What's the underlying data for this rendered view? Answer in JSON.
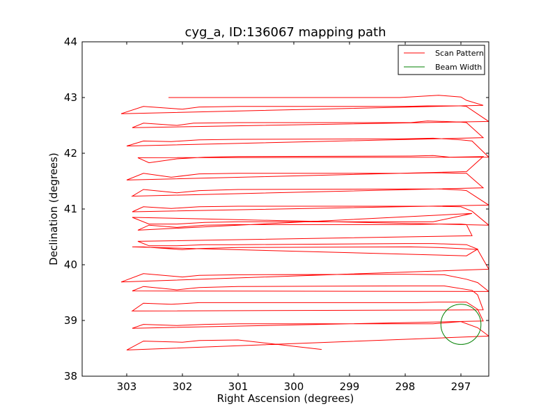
{
  "chart_data": {
    "type": "line",
    "title": "cyg_a, ID:136067 mapping path",
    "xlabel": "Right Ascension (degrees)",
    "ylabel": "Declination (degrees)",
    "xlim": [
      303.8,
      296.5
    ],
    "ylim": [
      38,
      44
    ],
    "x_reversed": true,
    "xticks": [
      303,
      302,
      301,
      300,
      299,
      298,
      297
    ],
    "yticks": [
      38,
      39,
      40,
      41,
      42,
      43,
      44
    ],
    "grid": false,
    "legend": {
      "placement": "top-right",
      "entries": [
        {
          "label": "Scan Pattern",
          "color": "#ff0000",
          "kind": "line"
        },
        {
          "label": "Beam Width",
          "color": "#008000",
          "kind": "line"
        }
      ]
    },
    "series": [
      {
        "name": "Scan Pattern",
        "color": "#ff0000",
        "x": [
          302.25,
          298.4,
          298.1,
          297.4,
          297.0,
          296.9,
          296.6,
          303.1,
          302.7,
          302.0,
          301.7,
          301.0,
          298.0,
          297.6,
          297.0,
          296.9,
          296.5,
          302.9,
          302.7,
          302.1,
          301.8,
          301.0,
          297.9,
          297.6,
          297.0,
          296.9,
          296.6,
          303.0,
          302.7,
          302.2,
          301.7,
          301.0,
          298.0,
          297.5,
          297.0,
          296.8,
          296.5,
          302.8,
          302.6,
          302.1,
          301.6,
          301.0,
          297.9,
          297.5,
          297.2,
          296.6,
          296.9,
          303.0,
          302.7,
          302.2,
          301.7,
          301.0,
          298.0,
          297.4,
          297.0,
          296.9,
          296.6,
          302.9,
          302.7,
          302.1,
          301.7,
          301.0,
          298.0,
          297.4,
          297.0,
          296.9,
          296.5,
          302.9,
          302.7,
          302.2,
          301.7,
          301.0,
          298.0,
          297.5,
          297.0,
          296.8,
          296.5,
          302.9,
          302.6,
          302.1,
          301.6,
          301.0,
          297.9,
          297.5,
          296.8,
          296.8,
          302.8,
          302.6,
          302.1,
          301.6,
          301.0,
          297.9,
          297.4,
          297.0,
          296.9,
          296.8,
          302.8,
          302.6,
          302.1,
          301.6,
          301.0,
          298.0,
          297.5,
          296.9,
          296.7,
          296.9,
          302.9,
          302.7,
          302.0,
          301.7,
          301.0,
          297.9,
          297.4,
          296.8,
          296.7,
          296.5,
          303.1,
          302.7,
          302.0,
          301.7,
          301.0,
          298.0,
          297.3,
          296.9,
          296.7,
          296.5,
          302.9,
          302.7,
          302.1,
          301.7,
          301.0,
          297.9,
          297.3,
          296.8,
          296.7,
          296.6,
          302.9,
          302.7,
          302.2,
          301.7,
          301.0,
          297.8,
          297.4,
          296.9,
          296.7,
          296.6,
          302.9,
          302.7,
          302.1,
          301.6,
          301.0,
          298.0,
          297.5,
          297.0,
          296.7,
          296.5,
          303.0,
          302.7,
          302.0,
          301.7,
          301.0,
          299.5
        ],
        "y": [
          43.0,
          43.0,
          43.0,
          43.04,
          43.01,
          42.95,
          42.86,
          42.71,
          42.84,
          42.79,
          42.83,
          42.84,
          42.84,
          42.85,
          42.85,
          42.84,
          42.57,
          42.46,
          42.54,
          42.5,
          42.54,
          42.55,
          42.55,
          42.58,
          42.56,
          42.55,
          42.28,
          42.13,
          42.22,
          42.21,
          42.24,
          42.25,
          42.26,
          42.27,
          42.24,
          42.22,
          41.93,
          41.92,
          41.83,
          41.9,
          41.93,
          41.94,
          41.95,
          41.96,
          41.93,
          41.94,
          41.67,
          41.52,
          41.64,
          41.57,
          41.63,
          41.64,
          41.64,
          41.65,
          41.64,
          41.64,
          41.38,
          41.23,
          41.35,
          41.29,
          41.33,
          41.35,
          41.36,
          41.36,
          41.34,
          41.33,
          41.07,
          40.95,
          41.04,
          41.01,
          41.04,
          41.05,
          41.05,
          41.05,
          41.04,
          40.96,
          40.71,
          40.85,
          40.73,
          40.73,
          40.76,
          40.77,
          40.77,
          40.77,
          40.92,
          40.92,
          40.62,
          40.71,
          40.67,
          40.71,
          40.72,
          40.72,
          40.73,
          40.73,
          40.72,
          40.52,
          40.42,
          40.34,
          40.34,
          40.36,
          40.36,
          40.38,
          40.38,
          40.36,
          40.28,
          40.16,
          40.32,
          40.32,
          40.27,
          40.29,
          40.31,
          40.32,
          40.31,
          40.28,
          40.27,
          39.92,
          39.69,
          39.84,
          39.78,
          39.81,
          39.82,
          39.83,
          39.82,
          39.74,
          39.68,
          39.52,
          39.53,
          39.61,
          39.55,
          39.59,
          39.61,
          39.62,
          39.62,
          39.54,
          39.46,
          39.19,
          39.17,
          39.31,
          39.29,
          39.32,
          39.32,
          39.32,
          39.33,
          39.33,
          39.2,
          38.99,
          38.86,
          38.93,
          38.91,
          38.93,
          38.94,
          38.94,
          38.94,
          38.98,
          38.87,
          38.72,
          38.47,
          38.63,
          38.61,
          38.64,
          38.65,
          38.48
        ]
      },
      {
        "name": "Beam Width",
        "color": "#008000",
        "shape": "circle",
        "center": [
          297.0,
          38.93
        ],
        "radius_deg": 0.36
      }
    ]
  }
}
